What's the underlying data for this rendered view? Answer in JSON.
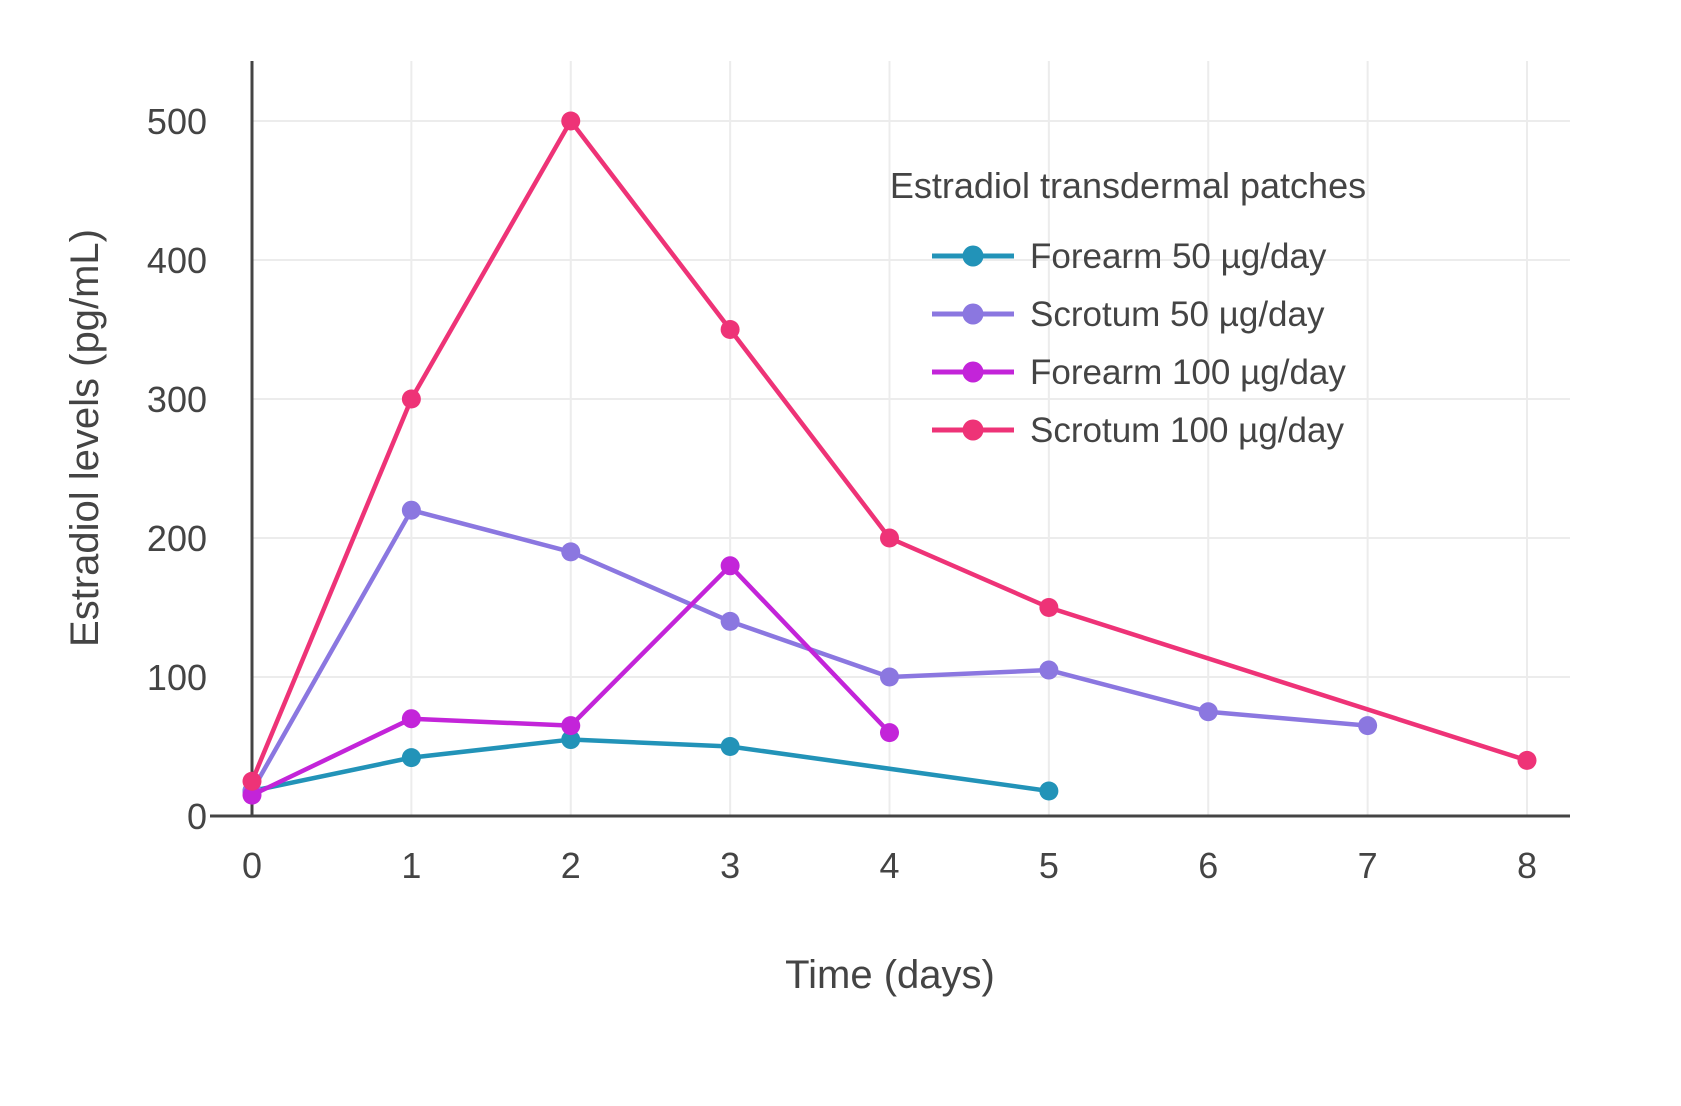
{
  "chart_data": {
    "type": "line",
    "title": "Estradiol transdermal patches",
    "xlabel": "Time (days)",
    "ylabel": "Estradiol levels (pg/mL)",
    "xlim": [
      0,
      8
    ],
    "ylim": [
      0,
      500
    ],
    "xticks": [
      0,
      1,
      2,
      3,
      4,
      5,
      6,
      7,
      8
    ],
    "yticks": [
      0,
      100,
      200,
      300,
      400,
      500
    ],
    "grid": true,
    "legend_position": "inside upper right",
    "background_color": "#ffffff",
    "axis_color": "#444444",
    "grid_color": "#ececec",
    "text_color": "#444444",
    "series": [
      {
        "name": "Forearm 50 µg/day",
        "color": "#2293b8",
        "x": [
          0,
          1,
          2,
          3,
          5
        ],
        "y": [
          18,
          42,
          55,
          50,
          18
        ]
      },
      {
        "name": "Scrotum 50 µg/day",
        "color": "#8b77e0",
        "x": [
          0,
          1,
          2,
          3,
          4,
          5,
          6,
          7
        ],
        "y": [
          18,
          220,
          190,
          140,
          100,
          105,
          75,
          65
        ]
      },
      {
        "name": "Forearm 100 µg/day",
        "color": "#c324d9",
        "x": [
          0,
          1,
          2,
          3,
          4
        ],
        "y": [
          15,
          70,
          65,
          180,
          60
        ]
      },
      {
        "name": "Scrotum 100 µg/day",
        "color": "#ee3377",
        "x": [
          0,
          1,
          2,
          3,
          4,
          5,
          8
        ],
        "y": [
          25,
          300,
          500,
          350,
          200,
          150,
          40
        ]
      }
    ]
  }
}
